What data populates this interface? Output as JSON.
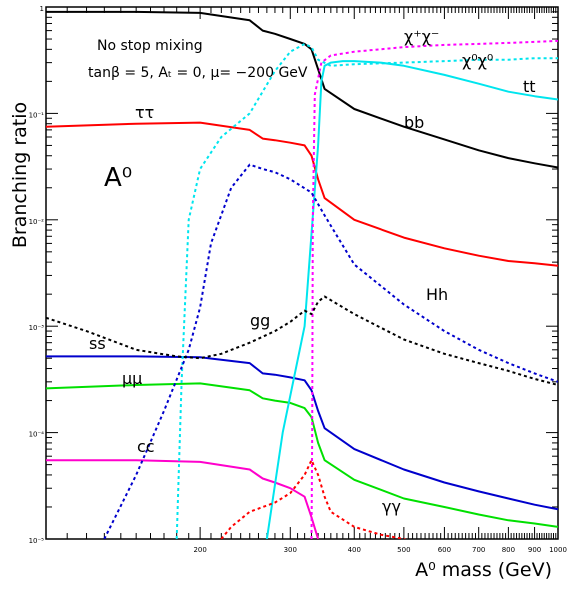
{
  "chart_data": {
    "type": "line",
    "xlabel": "A⁰ mass (GeV)",
    "ylabel": "Branching ratio",
    "x_scale": "log",
    "y_scale": "log",
    "xlim": [
      100,
      1000
    ],
    "ylim": [
      1e-05,
      1
    ],
    "grid": false,
    "legend": "none (curves labelled directly)",
    "x_tick_labels": [
      "200",
      "300",
      "400",
      "500",
      "600",
      "700",
      "800",
      "900",
      "1000"
    ],
    "y_tick_labels": [
      "1",
      "10⁻¹",
      "10⁻²",
      "10⁻³",
      "10⁻⁴",
      "10⁻⁵"
    ],
    "panel_label": "A⁰",
    "annotations": [
      "No stop mixing",
      "tanβ = 5, Aₜ = 0, μ= −200 GeV"
    ],
    "series": [
      {
        "name": "bb",
        "color": "#000000",
        "style": "solid",
        "x": [
          100,
          150,
          200,
          250,
          265,
          280,
          300,
          320,
          330,
          340,
          350,
          400,
          500,
          600,
          700,
          800,
          900,
          1000
        ],
        "y": [
          0.9,
          0.9,
          0.88,
          0.75,
          0.6,
          0.56,
          0.5,
          0.45,
          0.4,
          0.26,
          0.17,
          0.11,
          0.075,
          0.057,
          0.045,
          0.038,
          0.034,
          0.031
        ]
      },
      {
        "name": "ττ",
        "color": "#ff0000",
        "style": "solid",
        "x": [
          100,
          150,
          200,
          250,
          265,
          280,
          300,
          320,
          330,
          340,
          350,
          400,
          500,
          600,
          700,
          800,
          900,
          1000
        ],
        "y": [
          0.075,
          0.08,
          0.082,
          0.07,
          0.058,
          0.056,
          0.053,
          0.05,
          0.04,
          0.024,
          0.016,
          0.01,
          0.0068,
          0.0054,
          0.0046,
          0.0041,
          0.0039,
          0.0037
        ]
      },
      {
        "name": "μμ",
        "color": "#00e000",
        "style": "solid",
        "x": [
          100,
          150,
          200,
          250,
          265,
          280,
          300,
          320,
          330,
          340,
          350,
          400,
          500,
          600,
          700,
          800,
          900,
          1000
        ],
        "y": [
          0.00026,
          0.00028,
          0.00029,
          0.00025,
          0.00021,
          0.0002,
          0.00019,
          0.00017,
          0.00014,
          8e-05,
          5.5e-05,
          3.6e-05,
          2.4e-05,
          2e-05,
          1.7e-05,
          1.5e-05,
          1.4e-05,
          1.3e-05
        ]
      },
      {
        "name": "ss",
        "color": "#0000cc",
        "style": "solid",
        "x": [
          100,
          150,
          200,
          250,
          265,
          280,
          300,
          320,
          330,
          340,
          350,
          400,
          500,
          600,
          700,
          800,
          900,
          1000
        ],
        "y": [
          0.00052,
          0.00052,
          0.00051,
          0.00045,
          0.00036,
          0.00035,
          0.00033,
          0.00031,
          0.00025,
          0.00016,
          0.00011,
          7e-05,
          4.5e-05,
          3.4e-05,
          2.8e-05,
          2.4e-05,
          2.1e-05,
          1.9e-05
        ]
      },
      {
        "name": "cc",
        "color": "#ff00cc",
        "style": "solid",
        "x": [
          100,
          150,
          200,
          250,
          265,
          280,
          300,
          320,
          330,
          340
        ],
        "y": [
          5.5e-05,
          5.5e-05,
          5.3e-05,
          4.5e-05,
          3.7e-05,
          3.4e-05,
          3e-05,
          2.5e-05,
          1.6e-05,
          1e-05
        ]
      },
      {
        "name": "tt",
        "color": "#00e5ee",
        "style": "solid",
        "x": [
          270,
          290,
          320,
          340,
          345,
          350,
          360,
          380,
          400,
          450,
          500,
          600,
          700,
          800,
          900,
          1000
        ],
        "y": [
          1e-05,
          0.0001,
          0.001,
          0.05,
          0.2,
          0.28,
          0.3,
          0.31,
          0.31,
          0.3,
          0.28,
          0.23,
          0.19,
          0.16,
          0.145,
          0.135
        ]
      },
      {
        "name": "χ⁺χ⁻",
        "color": "#ff00ff",
        "style": "dotted",
        "x": [
          330,
          331,
          332,
          335,
          345,
          360,
          400,
          450,
          500,
          600,
          700,
          800,
          900,
          1000
        ],
        "y": [
          1e-05,
          0.0001,
          0.01,
          0.15,
          0.3,
          0.35,
          0.38,
          0.4,
          0.42,
          0.44,
          0.45,
          0.46,
          0.47,
          0.48
        ]
      },
      {
        "name": "χ⁰χ⁰",
        "color": "#00e5ee",
        "style": "dotted",
        "x": [
          180,
          184,
          190,
          200,
          220,
          250,
          280,
          300,
          320,
          330,
          340,
          360,
          400,
          500,
          600,
          700,
          800,
          900,
          1000
        ],
        "y": [
          1e-05,
          0.0003,
          0.01,
          0.03,
          0.06,
          0.1,
          0.25,
          0.38,
          0.45,
          0.42,
          0.32,
          0.28,
          0.29,
          0.3,
          0.31,
          0.32,
          0.32,
          0.33,
          0.33
        ]
      },
      {
        "name": "Hh",
        "color": "#0000cc",
        "style": "dotted",
        "x": [
          130,
          150,
          170,
          190,
          200,
          210,
          230,
          250,
          265,
          280,
          300,
          330,
          350,
          400,
          500,
          600,
          700,
          800,
          900,
          1000
        ],
        "y": [
          1e-05,
          4e-05,
          0.00016,
          0.0006,
          0.0015,
          0.006,
          0.02,
          0.033,
          0.03,
          0.028,
          0.024,
          0.018,
          0.011,
          0.0038,
          0.0016,
          0.0009,
          0.0006,
          0.00045,
          0.00036,
          0.0003
        ]
      },
      {
        "name": "gg",
        "color": "#000000",
        "style": "dotted",
        "x": [
          100,
          120,
          150,
          180,
          200,
          220,
          250,
          280,
          300,
          320,
          330,
          340,
          350,
          400,
          500,
          600,
          700,
          800,
          900,
          1000
        ],
        "y": [
          0.0012,
          0.0009,
          0.0006,
          0.00052,
          0.0005,
          0.00055,
          0.0007,
          0.0009,
          0.0011,
          0.0014,
          0.0013,
          0.0017,
          0.0019,
          0.0013,
          0.00075,
          0.00055,
          0.00045,
          0.00038,
          0.00032,
          0.00028
        ]
      },
      {
        "name": "γγ",
        "color": "#ff0000",
        "style": "dotted",
        "x": [
          220,
          230,
          250,
          280,
          300,
          320,
          330,
          340,
          350,
          360,
          400,
          450,
          500,
          550
        ],
        "y": [
          1e-05,
          1.3e-05,
          1.8e-05,
          2.2e-05,
          2.7e-05,
          4e-05,
          5.5e-05,
          4e-05,
          2.5e-05,
          1.8e-05,
          1.3e-05,
          1.1e-05,
          1e-05,
          8e-06
        ]
      }
    ]
  }
}
